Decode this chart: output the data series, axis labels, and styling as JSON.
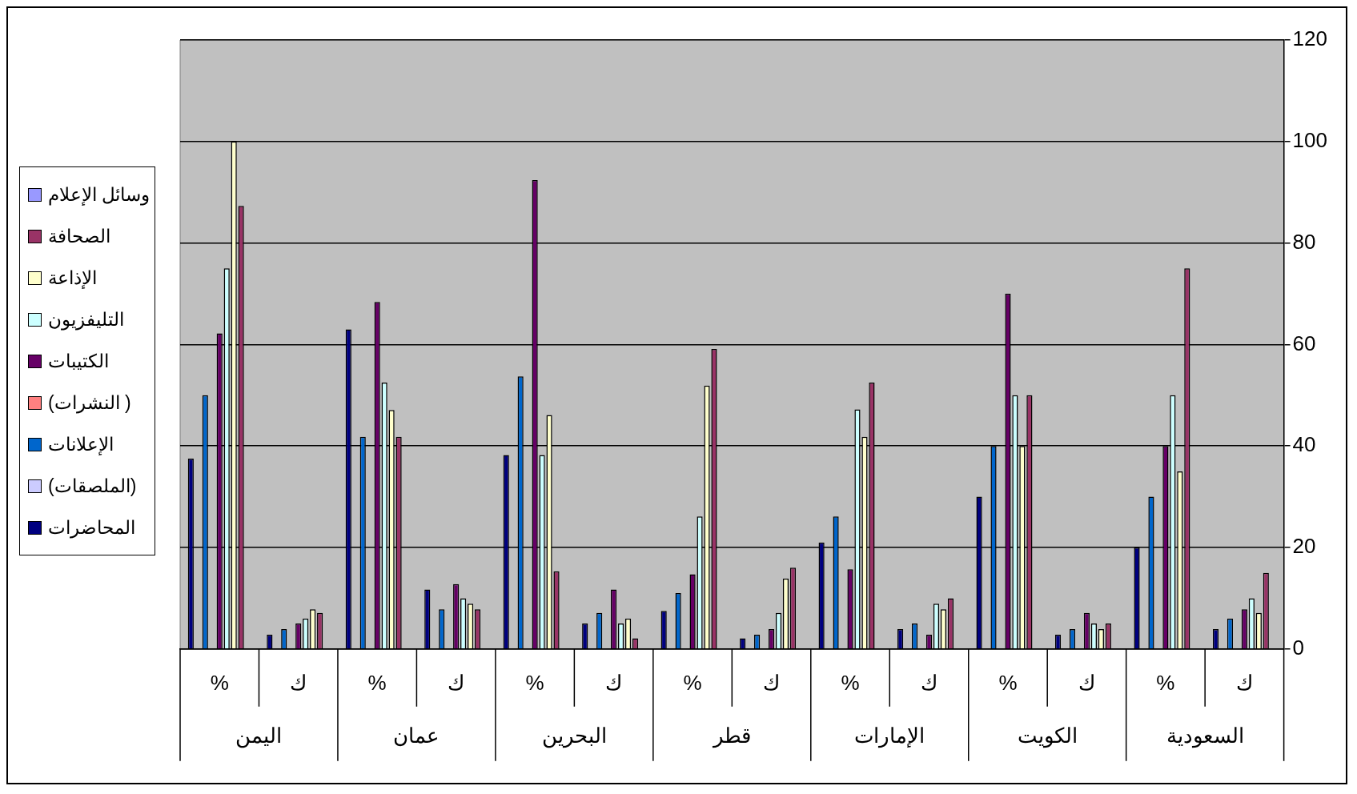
{
  "chart_data": {
    "type": "bar",
    "categories": [
      "%",
      "ك",
      "%",
      "ك",
      "%",
      "ك",
      "%",
      "ك",
      "%",
      "ك",
      "%",
      "ك",
      "%",
      "ك"
    ],
    "series": [
      {
        "name": "المحاضرات",
        "color": "#000080",
        "values": [
          37.5,
          2.8,
          63,
          11.7,
          38.2,
          5,
          7.5,
          2.1,
          21,
          3.9,
          30,
          2.8,
          20,
          3.9
        ]
      },
      {
        "name": "(الملصقات)",
        "color": "#ccccff",
        "values": [
          null,
          null,
          null,
          null,
          null,
          null,
          null,
          null,
          null,
          null,
          null,
          null,
          null,
          null
        ]
      },
      {
        "name": "الإعلانات",
        "color": "#0066cc",
        "values": [
          50,
          3.9,
          41.8,
          7.8,
          53.7,
          7.1,
          11,
          2.8,
          26.1,
          5,
          40,
          3.9,
          30,
          6
        ]
      },
      {
        "name": "( النشرات)",
        "color": "#ff8080",
        "values": [
          null,
          null,
          null,
          null,
          null,
          null,
          null,
          null,
          null,
          null,
          null,
          null,
          null,
          null
        ]
      },
      {
        "name": "الكتيبات",
        "color": "#660066",
        "values": [
          62.2,
          5,
          68.4,
          12.8,
          92.4,
          11.7,
          14.7,
          3.9,
          15.7,
          2.8,
          70,
          7.1,
          40,
          7.8
        ]
      },
      {
        "name": "التليفزيون",
        "color": "#ccffff",
        "values": [
          75,
          6,
          52.5,
          10,
          38.2,
          5,
          26.1,
          7.1,
          47.2,
          8.9,
          50,
          5,
          50,
          10
        ]
      },
      {
        "name": "الإذاعة",
        "color": "#ffffcc",
        "values": [
          100,
          7.8,
          47.1,
          8.9,
          46.1,
          6,
          51.9,
          13.9,
          41.8,
          7.8,
          40,
          3.9,
          35,
          7.1
        ]
      },
      {
        "name": "الصحافة",
        "color": "#993366",
        "values": [
          87.3,
          7.1,
          41.8,
          7.8,
          15.3,
          2.1,
          59.1,
          16,
          52.5,
          10,
          50,
          5,
          75,
          15
        ]
      },
      {
        "name": "وسائل الإعلام",
        "color": "#9999ff",
        "values": [
          null,
          null,
          null,
          null,
          null,
          null,
          null,
          null,
          null,
          null,
          null,
          null,
          null,
          null
        ]
      }
    ],
    "ylim": [
      0,
      120
    ],
    "yticks": [
      0,
      20,
      40,
      60,
      80,
      100,
      120
    ],
    "grid": "y",
    "legend": "left",
    "annotations": [
      "اليمن",
      "عمان",
      "البحرين",
      "قطر",
      "الإمارات",
      "الكويت",
      "السعودية"
    ]
  }
}
